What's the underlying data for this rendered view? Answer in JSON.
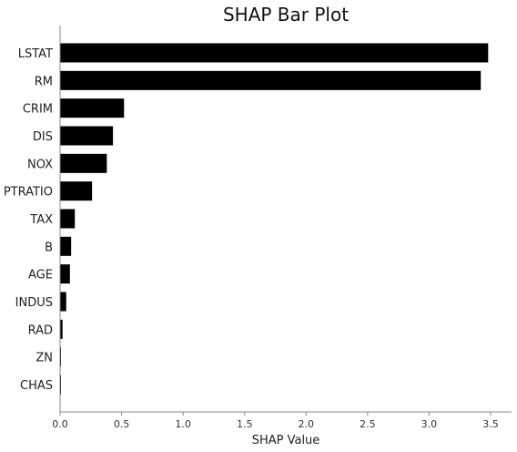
{
  "chart_data": {
    "type": "bar",
    "orientation": "horizontal",
    "title": "SHAP Bar Plot",
    "xlabel": "SHAP Value",
    "ylabel": "",
    "categories": [
      "LSTAT",
      "RM",
      "CRIM",
      "DIS",
      "NOX",
      "PTRATIO",
      "TAX",
      "B",
      "AGE",
      "INDUS",
      "RAD",
      "ZN",
      "CHAS"
    ],
    "values": [
      3.48,
      3.42,
      0.52,
      0.43,
      0.38,
      0.26,
      0.12,
      0.09,
      0.08,
      0.05,
      0.02,
      0.005,
      0.003
    ],
    "xlim": [
      0,
      3.66
    ],
    "xticks": [
      0.0,
      0.5,
      1.0,
      1.5,
      2.0,
      2.5,
      3.0,
      3.5
    ],
    "xtick_labels": [
      "0.0",
      "0.5",
      "1.0",
      "1.5",
      "2.0",
      "2.5",
      "3.0",
      "3.5"
    ],
    "bar_color": "#000000",
    "grid": false,
    "legend": "none"
  }
}
